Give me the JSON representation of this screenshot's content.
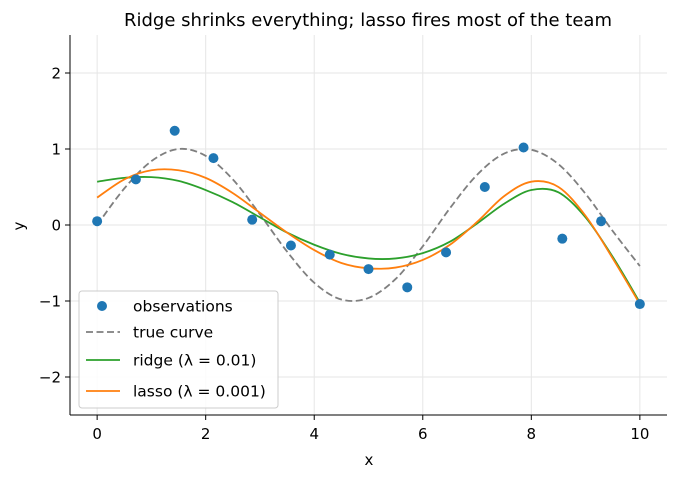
{
  "chart_data": {
    "type": "line",
    "title": "Ridge shrinks everything; lasso fires most of the team",
    "xlabel": "x",
    "ylabel": "y",
    "xlim": [
      -0.5,
      10.5
    ],
    "ylim": [
      -2.5,
      2.5
    ],
    "xticks": [
      0,
      2,
      4,
      6,
      8,
      10
    ],
    "yticks": [
      -2,
      -1,
      0,
      1,
      2
    ],
    "xtick_labels": [
      "0",
      "2",
      "4",
      "6",
      "8",
      "10"
    ],
    "ytick_labels": [
      "−2",
      "−1",
      "0",
      "1",
      "2"
    ],
    "grid": true,
    "legend_position": "lower-left",
    "observations": {
      "name": "observations",
      "color": "#1f77b4",
      "x": [
        0,
        0.714,
        1.429,
        2.143,
        2.857,
        3.571,
        4.286,
        5.0,
        5.714,
        6.429,
        7.143,
        7.857,
        8.571,
        9.286,
        10.0
      ],
      "y": [
        0.05,
        0.6,
        1.24,
        0.88,
        0.07,
        -0.27,
        -0.39,
        -0.58,
        -0.82,
        -0.36,
        0.5,
        1.02,
        -0.18,
        0.05,
        -1.04
      ]
    },
    "series": [
      {
        "name": "true curve",
        "color": "#7f7f7f",
        "style": "dashed",
        "x": [
          0,
          0.5,
          1.0,
          1.5,
          2.0,
          2.5,
          3.0,
          3.5,
          4.0,
          4.5,
          5.0,
          5.5,
          6.0,
          6.5,
          7.0,
          7.5,
          8.0,
          8.5,
          9.0,
          9.5,
          10.0
        ],
        "y": [
          0.0,
          0.48,
          0.84,
          1.0,
          0.91,
          0.6,
          0.14,
          -0.35,
          -0.76,
          -0.98,
          -0.96,
          -0.71,
          -0.28,
          0.22,
          0.66,
          0.94,
          0.99,
          0.8,
          0.41,
          -0.08,
          -0.54
        ]
      },
      {
        "name": "ridge (λ = 0.01)",
        "color": "#2ca02c",
        "style": "solid",
        "x": [
          0,
          0.5,
          1.0,
          1.5,
          2.0,
          2.5,
          3.0,
          3.5,
          4.0,
          4.5,
          5.0,
          5.5,
          6.0,
          6.5,
          7.0,
          7.5,
          8.0,
          8.5,
          9.0,
          9.5,
          10.0
        ],
        "y": [
          0.57,
          0.62,
          0.63,
          0.58,
          0.46,
          0.3,
          0.1,
          -0.1,
          -0.26,
          -0.38,
          -0.44,
          -0.44,
          -0.37,
          -0.22,
          0.02,
          0.28,
          0.46,
          0.43,
          0.1,
          -0.42,
          -1.02
        ]
      },
      {
        "name": "lasso (λ = 0.001)",
        "color": "#ff7f0e",
        "style": "solid",
        "x": [
          0,
          0.5,
          1.0,
          1.5,
          2.0,
          2.5,
          3.0,
          3.5,
          4.0,
          4.5,
          5.0,
          5.5,
          6.0,
          6.5,
          7.0,
          7.5,
          8.0,
          8.5,
          9.0,
          9.5,
          10.0
        ],
        "y": [
          0.36,
          0.6,
          0.72,
          0.72,
          0.62,
          0.42,
          0.16,
          -0.1,
          -0.33,
          -0.5,
          -0.57,
          -0.56,
          -0.46,
          -0.26,
          0.04,
          0.38,
          0.57,
          0.5,
          0.12,
          -0.44,
          -1.04
        ]
      }
    ],
    "legend": [
      {
        "label": "observations",
        "kind": "marker",
        "color": "#1f77b4"
      },
      {
        "label": "true curve",
        "kind": "dashed",
        "color": "#7f7f7f"
      },
      {
        "label": "ridge (λ = 0.01)",
        "kind": "line",
        "color": "#2ca02c"
      },
      {
        "label": "lasso (λ = 0.001)",
        "kind": "line",
        "color": "#ff7f0e"
      }
    ]
  }
}
